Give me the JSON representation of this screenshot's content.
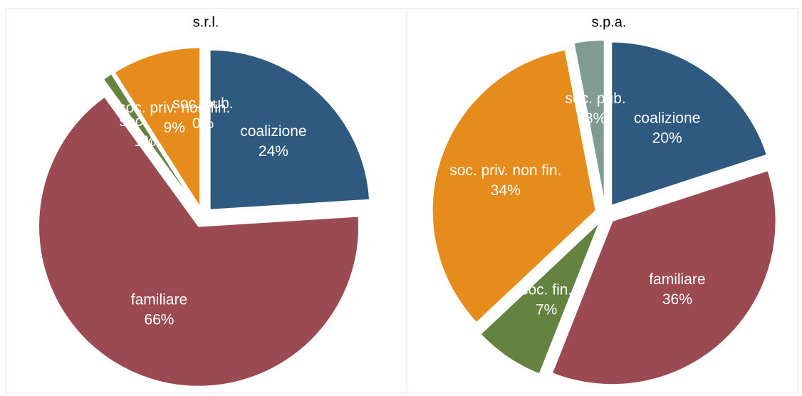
{
  "chart_data": [
    {
      "type": "pie",
      "title": "s.r.l.",
      "categories": [
        "coalizione",
        "familiare",
        "soc. fin.",
        "soc. priv. non fin.",
        "soc. pub."
      ],
      "values": [
        24,
        66,
        1,
        9,
        0
      ],
      "value_labels": [
        "24%",
        "66%",
        "1%",
        "9%",
        "0%"
      ],
      "colors": [
        "#2f5a80",
        "#9a4a50",
        "#658340",
        "#e58c1d",
        "#7f9b92"
      ]
    },
    {
      "type": "pie",
      "title": "s.p.a.",
      "categories": [
        "coalizione",
        "familiare",
        "soc. fin.",
        "soc. priv. non fin.",
        "soc. pub."
      ],
      "values": [
        20,
        36,
        7,
        34,
        3
      ],
      "value_labels": [
        "20%",
        "36%",
        "7%",
        "34%",
        "3%"
      ],
      "colors": [
        "#2f5a80",
        "#9a4a50",
        "#658340",
        "#e58c1d",
        "#7f9b92"
      ]
    }
  ]
}
